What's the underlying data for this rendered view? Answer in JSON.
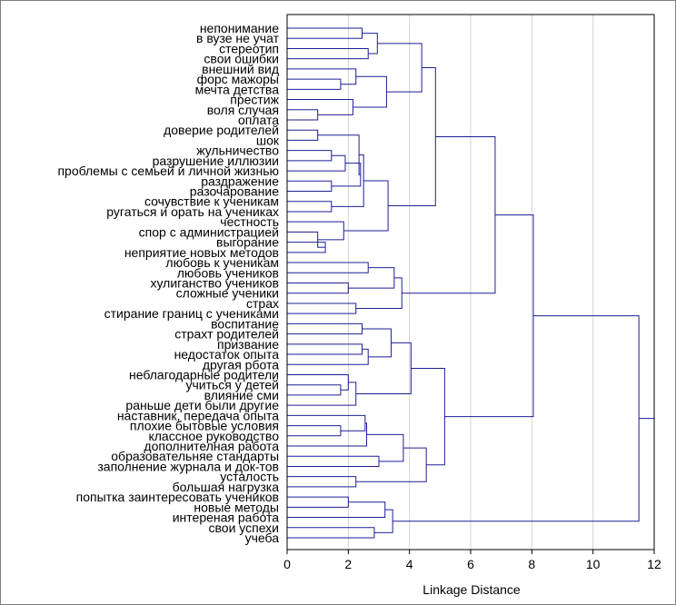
{
  "chart_data": {
    "type": "dendrogram",
    "orientation": "horizontal",
    "xlabel": "Linkage Distance",
    "xlim": [
      0,
      12
    ],
    "xticks": [
      0,
      2,
      4,
      6,
      8,
      10,
      12
    ],
    "grid": "vertical",
    "colors": {
      "lines": "#1e1e96",
      "grid": "#d4d4d4",
      "axis": "#000000"
    },
    "leaves": [
      "непонимание",
      "в вузе не учат",
      "стереотип",
      "свои ошибки",
      "внешний вид",
      "форс мажоры",
      "мечта детства",
      "престиж",
      "воля случая",
      "оплата",
      "доверие родителей",
      "шок",
      "жульничество",
      "разрушение иллюзии",
      "проблемы с семьей и личной  жизнью",
      "раздражение",
      "разочарование",
      "сочувствие к ученикам",
      "ругаться и орать на учениках",
      "честность",
      "спор с администрацией",
      "выгорание",
      "неприятие новых методов",
      "любовь к ученикам",
      "любовь учеников",
      "хулиганство учеников",
      "сложные ученики",
      "страх",
      "стирание границ с учениками",
      "воспитание",
      "страхт родителей",
      "призвание",
      "недостаток опыта",
      "другая рбота",
      "неблагодарные родители",
      "учиться у детей",
      "влияние сми",
      "раньше дети были другие",
      "наставник, передача опыта",
      "плохие бытовые условия",
      "классное руководство",
      "дополнителная работа",
      "образовательняе стандарты",
      "заполнение журнала и док-тов",
      "усталость",
      "большая нагрузка",
      "попытка заинтересовать учеников",
      "новые методы",
      "интереная работа",
      "свои успехи",
      "учеба"
    ],
    "merges": [
      {
        "a": 0,
        "b": 1,
        "h": 2.45
      },
      {
        "a": 2,
        "b": 3,
        "h": 2.65
      },
      {
        "a": "m0",
        "b": "m1",
        "h": 2.95
      },
      {
        "a": 5,
        "b": 6,
        "h": 1.75
      },
      {
        "a": 4,
        "b": "m3",
        "h": 2.25
      },
      {
        "a": 8,
        "b": 9,
        "h": 1.0
      },
      {
        "a": 7,
        "b": "m5",
        "h": 2.15
      },
      {
        "a": "m4",
        "b": "m6",
        "h": 3.25
      },
      {
        "a": "m2",
        "b": "m7",
        "h": 4.4
      },
      {
        "a": 10,
        "b": 11,
        "h": 1.0
      },
      {
        "a": 12,
        "b": 13,
        "h": 1.45
      },
      {
        "a": "m10",
        "b": 14,
        "h": 1.9
      },
      {
        "a": 15,
        "b": 16,
        "h": 1.45
      },
      {
        "a": "m11",
        "b": "m12",
        "h": 2.4
      },
      {
        "a": 17,
        "b": 18,
        "h": 1.45
      },
      {
        "a": "m9",
        "b": "m13",
        "h": 2.35
      },
      {
        "a": "m15",
        "b": "m14",
        "h": 2.5
      },
      {
        "a": 21,
        "b": 22,
        "h": 1.25
      },
      {
        "a": 20,
        "b": "m17",
        "h": 1.0
      },
      {
        "a": 19,
        "b": "m18",
        "h": 1.85
      },
      {
        "a": "m16",
        "b": "m19",
        "h": 3.3
      },
      {
        "a": "m8",
        "b": "m20",
        "h": 4.85
      },
      {
        "a": 23,
        "b": 24,
        "h": 2.65
      },
      {
        "a": 25,
        "b": 26,
        "h": 2.0
      },
      {
        "a": "m22",
        "b": "m23",
        "h": 3.5
      },
      {
        "a": 27,
        "b": 28,
        "h": 2.25
      },
      {
        "a": "m24",
        "b": "m25",
        "h": 3.75
      },
      {
        "a": "m21",
        "b": "m26",
        "h": 6.8
      },
      {
        "a": 29,
        "b": 30,
        "h": 2.45
      },
      {
        "a": 31,
        "b": 32,
        "h": 2.45
      },
      {
        "a": "m29",
        "b": 33,
        "h": 2.65
      },
      {
        "a": "m28",
        "b": "m30",
        "h": 3.4
      },
      {
        "a": 35,
        "b": 36,
        "h": 1.75
      },
      {
        "a": 34,
        "b": "m32",
        "h": 2.0
      },
      {
        "a": "m33",
        "b": 37,
        "h": 2.25
      },
      {
        "a": "m31",
        "b": "m34",
        "h": 4.05
      },
      {
        "a": 39,
        "b": 40,
        "h": 1.75
      },
      {
        "a": 38,
        "b": "m36",
        "h": 2.55
      },
      {
        "a": "m37",
        "b": 41,
        "h": 2.6
      },
      {
        "a": 42,
        "b": 43,
        "h": 3.0
      },
      {
        "a": "m38",
        "b": "m39",
        "h": 3.8
      },
      {
        "a": 44,
        "b": 45,
        "h": 2.25
      },
      {
        "a": "m40",
        "b": "m41",
        "h": 4.55
      },
      {
        "a": "m35",
        "b": "m42",
        "h": 5.15
      },
      {
        "a": "m27",
        "b": "m43",
        "h": 8.05
      },
      {
        "a": 46,
        "b": 47,
        "h": 2.0
      },
      {
        "a": "m45",
        "b": 48,
        "h": 3.2
      },
      {
        "a": 49,
        "b": 50,
        "h": 2.85
      },
      {
        "a": "m46",
        "b": "m47",
        "h": 3.45
      },
      {
        "a": "m44",
        "b": "m48",
        "h": 11.5
      }
    ]
  }
}
